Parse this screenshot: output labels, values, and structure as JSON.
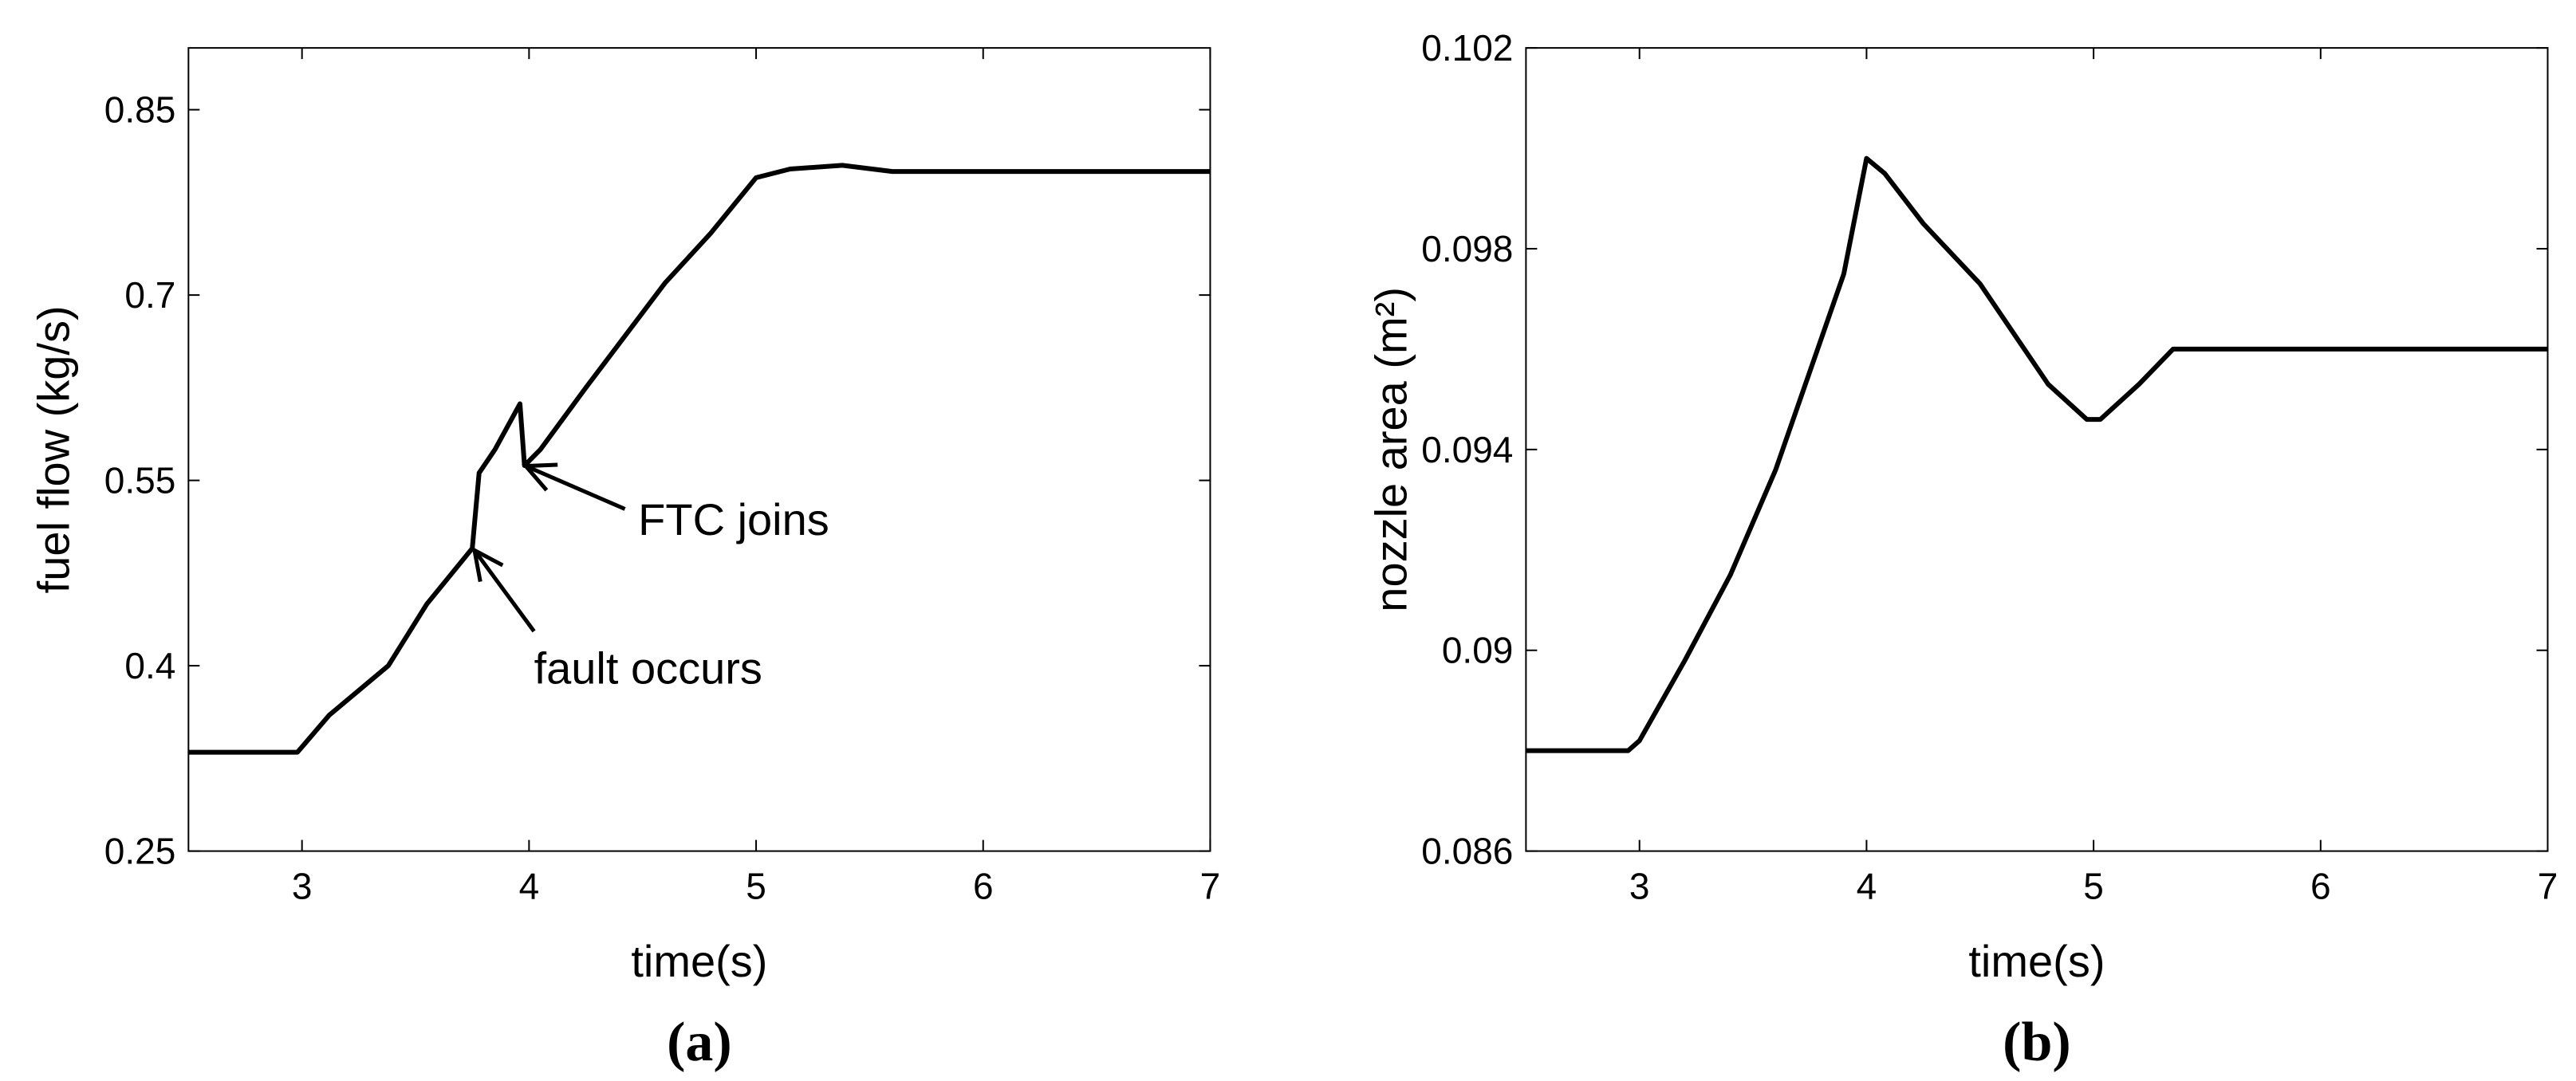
{
  "chart_data": [
    {
      "type": "line",
      "label": "(a)",
      "xlabel": "time(s)",
      "ylabel": "fuel flow (kg/s)",
      "xlim": [
        2.5,
        7
      ],
      "xticks": [
        3,
        4,
        5,
        6,
        7
      ],
      "ylim": [
        0.25,
        0.9
      ],
      "yticks": [
        0.25,
        0.4,
        0.55,
        0.7,
        0.85
      ],
      "annotations": [
        "FTC joins",
        "fault occurs"
      ],
      "series": [
        {
          "color": "#000000",
          "x": [
            2.5,
            2.98,
            3.12,
            3.38,
            3.55,
            3.75,
            3.78,
            3.85,
            3.96,
            3.98,
            4.05,
            4.25,
            4.6,
            4.8,
            5.0,
            5.15,
            5.38,
            5.6,
            7
          ],
          "values": [
            0.33,
            0.33,
            0.36,
            0.4,
            0.45,
            0.495,
            0.556,
            0.575,
            0.612,
            0.562,
            0.575,
            0.625,
            0.71,
            0.75,
            0.795,
            0.802,
            0.805,
            0.8,
            0.8
          ]
        }
      ]
    },
    {
      "type": "line",
      "label": "(b)",
      "xlabel": "time(s)",
      "ylabel": "nozzle area (m²)",
      "xlim": [
        2.5,
        7
      ],
      "xticks": [
        3,
        4,
        5,
        6,
        7
      ],
      "ylim": [
        0.086,
        0.102
      ],
      "yticks": [
        0.086,
        0.09,
        0.094,
        0.098,
        0.102
      ],
      "annotations": [],
      "series": [
        {
          "color": "#000000",
          "x": [
            2.5,
            2.95,
            3.0,
            3.2,
            3.4,
            3.6,
            3.8,
            3.9,
            4.0,
            4.08,
            4.25,
            4.5,
            4.8,
            4.97,
            5.03,
            5.2,
            5.35,
            5.5,
            7
          ],
          "values": [
            0.088,
            0.088,
            0.0882,
            0.0898,
            0.0915,
            0.0936,
            0.0962,
            0.0975,
            0.0998,
            0.0995,
            0.0985,
            0.0973,
            0.0953,
            0.0946,
            0.0946,
            0.0953,
            0.096,
            0.096,
            0.096
          ]
        }
      ]
    }
  ]
}
